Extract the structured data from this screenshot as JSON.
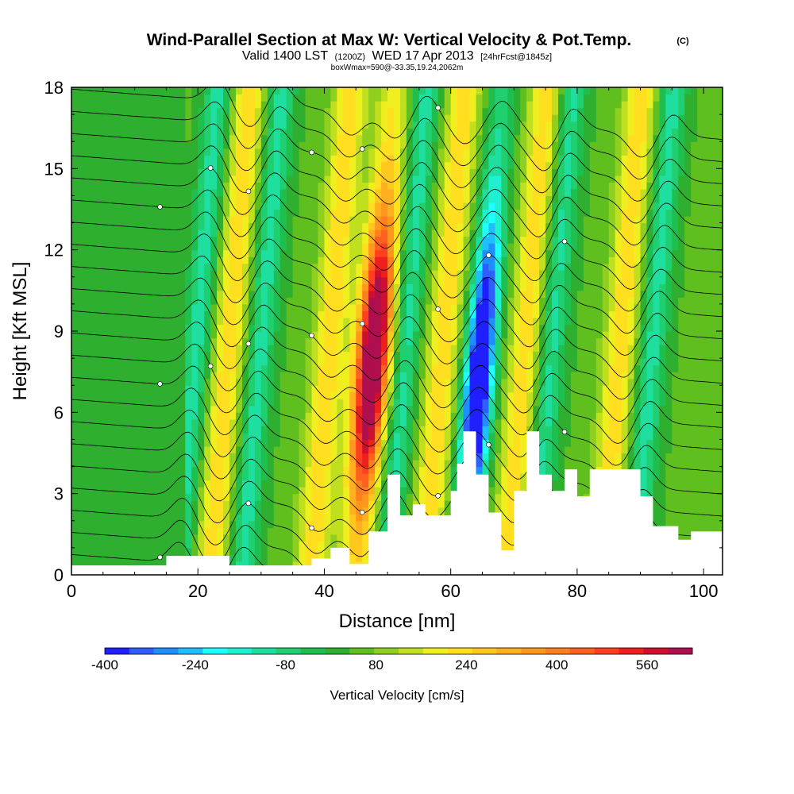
{
  "header": {
    "title": "Wind-Parallel Section at Max W: Vertical Velocity & Pot.Temp.",
    "copyright": "(C)",
    "valid_prefix": "Valid 1400 LST",
    "valid_utc": "(1200Z)",
    "valid_date": "WED 17 Apr 2013",
    "forecast": "[24hrFcst@1845z]",
    "box_info": "boxWmax=590@-33.35,19.24,2062m"
  },
  "chart_data": {
    "type": "heatmap",
    "xlabel": "Distance [nm]",
    "ylabel": "Height [Kft MSL]",
    "xlim": [
      0,
      103
    ],
    "ylim": [
      0,
      18
    ],
    "x_ticks": [
      "0",
      "20",
      "40",
      "60",
      "80",
      "100"
    ],
    "y_ticks": [
      "0",
      "3",
      "6",
      "9",
      "12",
      "15",
      "18"
    ],
    "colorbar": {
      "label": "Vertical Velocity [cm/s]",
      "range": [
        -400,
        640
      ],
      "ticks": [
        "-400",
        "-240",
        "-80",
        "80",
        "240",
        "400",
        "560"
      ],
      "colors": [
        "#1f1fff",
        "#2f5fff",
        "#1f8fff",
        "#1fbfff",
        "#1fffff",
        "#1ff0d0",
        "#1fdfa0",
        "#1fcf70",
        "#1fbf4f",
        "#2faf2f",
        "#5fbf1f",
        "#8fcf1f",
        "#bfdf1f",
        "#efef1f",
        "#ffdf1f",
        "#ffc71f",
        "#ffaf1f",
        "#ff971f",
        "#ff7f1f",
        "#ff5f1f",
        "#ff3f1f",
        "#ef1f1f",
        "#cf0f2f",
        "#af0f4f"
      ]
    },
    "updrafts_nm": [
      24,
      40,
      47,
      58,
      71,
      86
    ],
    "downdrafts_nm": [
      19,
      29,
      52,
      64,
      75,
      91
    ],
    "max_updraft": {
      "distance_nm": 47,
      "height_kft": 8,
      "value_cms": 590
    },
    "max_downdraft": {
      "distance_nm": 64,
      "height_kft": 7,
      "value_cms": -390
    },
    "terrain": {
      "x": [
        0,
        15,
        25,
        38,
        41,
        44,
        47,
        50,
        52,
        54,
        56,
        58,
        60,
        61,
        62,
        64,
        66,
        68,
        70,
        72,
        74,
        76,
        78,
        80,
        82,
        86,
        90,
        92,
        96,
        98,
        103
      ],
      "height_kft": [
        0.35,
        0.7,
        0.35,
        0.6,
        1.0,
        0.4,
        1.6,
        3.7,
        2.2,
        2.6,
        2.2,
        2.2,
        3.1,
        4.1,
        5.3,
        3.7,
        2.3,
        0.9,
        3.1,
        5.3,
        3.7,
        3.1,
        3.9,
        2.9,
        3.9,
        3.9,
        2.9,
        1.8,
        1.3,
        1.6,
        1.6
      ]
    },
    "isentrope_count": 22,
    "contour_label": "o"
  }
}
